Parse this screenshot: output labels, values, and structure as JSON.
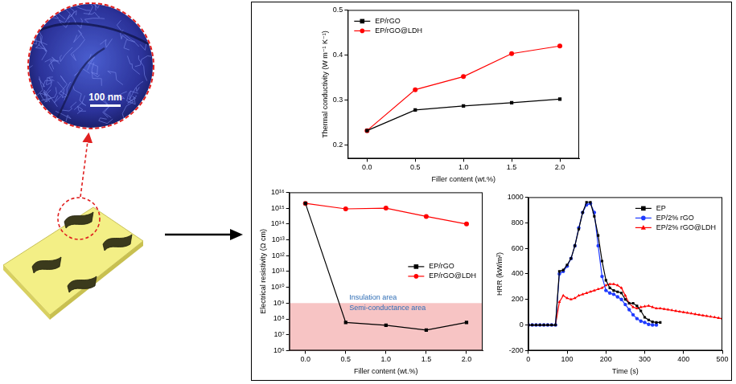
{
  "figure": {
    "scale_bar": "100 nm"
  },
  "chart_data": [
    {
      "type": "line",
      "xlabel": "Filler content (wt.%)",
      "ylabel": "Thermal conductivity (W m⁻¹ K⁻¹)",
      "x": [
        0,
        0.5,
        1,
        1.5,
        2
      ],
      "series": [
        {
          "name": "EP/rGO",
          "color": "#000000",
          "marker": "square",
          "line_style": "solid",
          "values": [
            0.232,
            0.278,
            0.287,
            0.294,
            0.302
          ]
        },
        {
          "name": "EP/rGO@LDH",
          "color": "#ff0000",
          "marker": "circle",
          "line_style": "solid",
          "values": [
            0.232,
            0.323,
            0.352,
            0.403,
            0.42
          ]
        }
      ],
      "xlim": [
        -0.2,
        2.2
      ],
      "xticks": [
        {
          "value": 0,
          "label": "0.0"
        },
        0.5,
        {
          "value": 1,
          "label": "1.0"
        },
        1.5,
        {
          "value": 2,
          "label": "2.0"
        }
      ],
      "ylim": [
        0.17,
        0.5
      ],
      "yticks": [
        0.2,
        0.3,
        0.4,
        0.5
      ],
      "grid": false,
      "legend": "upper left"
    },
    {
      "type": "line",
      "log": "y",
      "xlabel": "Filler content (wt.%)",
      "ylabel": "Electrical resistivity (Ω cm)",
      "x": [
        0,
        0.5,
        1,
        1.5,
        2
      ],
      "series": [
        {
          "name": "EP/rGO",
          "color": "#000000",
          "marker": "square",
          "line_style": "solid",
          "values": [
            2000000000000000.0,
            60000000.0,
            40000000.0,
            20000000.0,
            60000000.0
          ]
        },
        {
          "name": "EP/rGO@LDH",
          "color": "#ff0000",
          "marker": "circle",
          "line_style": "solid",
          "values": [
            2000000000000000.0,
            900000000000000.0,
            1000000000000000.0,
            300000000000000.0,
            100000000000000.0
          ]
        }
      ],
      "shaded_range": [
        1000000.0,
        1000000000.0
      ],
      "annotations": [
        "Insulation area",
        "Semi-conductance area"
      ],
      "xlim": [
        -0.2,
        2.2
      ],
      "xticks": [
        {
          "value": 0,
          "label": "0.0"
        },
        0.5,
        {
          "value": 1,
          "label": "1.0"
        },
        1.5,
        {
          "value": 2,
          "label": "2.0"
        }
      ],
      "ylim": [
        1000000.0,
        1e+16
      ],
      "yticks": [
        {
          "value": 1000000.0,
          "label": "10⁶"
        },
        {
          "value": 10000000.0,
          "label": "10⁷"
        },
        {
          "value": 100000000.0,
          "label": "10⁸"
        },
        {
          "value": 1000000000.0,
          "label": "10⁹"
        },
        {
          "value": 10000000000.0,
          "label": "10¹⁰"
        },
        {
          "value": 100000000000.0,
          "label": "10¹¹"
        },
        {
          "value": 1000000000000.0,
          "label": "10¹²"
        },
        {
          "value": 10000000000000.0,
          "label": "10¹³"
        },
        {
          "value": 100000000000000.0,
          "label": "10¹⁴"
        },
        {
          "value": 1000000000000000.0,
          "label": "10¹⁵"
        },
        {
          "value": 1e+16,
          "label": "10¹⁶"
        }
      ],
      "grid": false,
      "legend": "center right"
    },
    {
      "type": "line",
      "xlabel": "Time (s)",
      "ylabel": "HRR (kW/m²)",
      "x": [
        0,
        10,
        20,
        30,
        40,
        50,
        60,
        70,
        80,
        90,
        100,
        110,
        120,
        130,
        140,
        150,
        160,
        170,
        180,
        190,
        200,
        210,
        220,
        230,
        240,
        250,
        260,
        270,
        280,
        290,
        300,
        310,
        320,
        330,
        340,
        350,
        360,
        370,
        380,
        390,
        400,
        410,
        420,
        430,
        440,
        450,
        460,
        470,
        480,
        490,
        500
      ],
      "series": [
        {
          "name": "EP",
          "color": "#000000",
          "marker": "square",
          "line_style": "solid",
          "values": [
            0,
            0,
            0,
            0,
            0,
            0,
            0,
            0,
            420,
            430,
            470,
            520,
            620,
            750,
            880,
            960,
            960,
            850,
            700,
            500,
            350,
            290,
            270,
            260,
            250,
            200,
            170,
            170,
            150,
            110,
            60,
            40,
            25,
            20,
            20,
            null,
            null,
            null,
            null,
            null,
            null,
            null,
            null,
            null,
            null,
            null,
            null,
            null,
            null,
            null,
            null
          ]
        },
        {
          "name": "EP/2% rGO",
          "color": "#1f3bff",
          "marker": "circle",
          "line_style": "solid",
          "values": [
            0,
            0,
            0,
            0,
            0,
            0,
            0,
            0,
            400,
            420,
            460,
            520,
            620,
            760,
            880,
            940,
            950,
            880,
            620,
            380,
            270,
            250,
            240,
            220,
            200,
            160,
            120,
            80,
            50,
            30,
            20,
            5,
            0,
            0,
            null,
            null,
            null,
            null,
            null,
            null,
            null,
            null,
            null,
            null,
            null,
            null,
            null,
            null,
            null,
            null,
            null
          ]
        },
        {
          "name": "EP/2% rGO@LDH",
          "color": "#ff0000",
          "marker": "triangle",
          "line_style": "solid",
          "values": [
            0,
            0,
            0,
            0,
            0,
            0,
            0,
            0,
            180,
            230,
            210,
            200,
            210,
            230,
            240,
            250,
            260,
            270,
            280,
            290,
            310,
            320,
            320,
            310,
            290,
            230,
            170,
            140,
            130,
            140,
            145,
            150,
            140,
            130,
            130,
            125,
            120,
            115,
            110,
            105,
            100,
            95,
            90,
            85,
            80,
            75,
            70,
            65,
            60,
            55,
            50
          ]
        }
      ],
      "xlim": [
        0,
        500
      ],
      "xticks": [
        0,
        100,
        200,
        300,
        400,
        500
      ],
      "ylim": [
        -200,
        1000
      ],
      "yticks": [
        -200,
        0,
        200,
        400,
        600,
        800,
        1000
      ],
      "grid": false,
      "legend": "upper right"
    }
  ]
}
